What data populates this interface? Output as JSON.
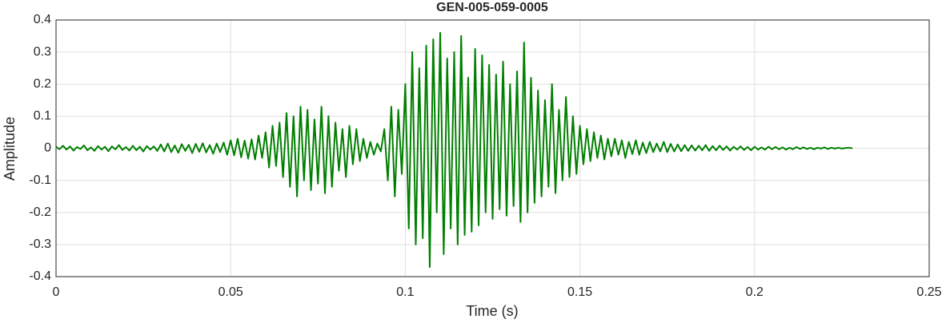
{
  "chart_data": {
    "type": "line",
    "title": "GEN-005-059-0005",
    "xlabel": "Time (s)",
    "ylabel": "Amplitude",
    "xlim": [
      0,
      0.25
    ],
    "xticks": [
      0,
      0.05,
      0.1,
      0.15,
      0.2,
      0.25
    ],
    "ylim": [
      -0.4,
      0.4
    ],
    "yticks": [
      -0.4,
      -0.3,
      -0.2,
      -0.1,
      0,
      0.1,
      0.2,
      0.3,
      0.4
    ],
    "grid": true,
    "series": [
      {
        "color": "#007f00",
        "x": [
          0,
          0.001,
          0.002,
          0.003,
          0.004,
          0.005,
          0.006,
          0.007,
          0.008,
          0.009,
          0.01,
          0.011,
          0.012,
          0.013,
          0.014,
          0.015,
          0.016,
          0.017,
          0.018,
          0.019,
          0.02,
          0.021,
          0.022,
          0.023,
          0.024,
          0.025,
          0.026,
          0.027,
          0.028,
          0.029,
          0.03,
          0.031,
          0.032,
          0.033,
          0.034,
          0.035,
          0.036,
          0.037,
          0.038,
          0.039,
          0.04,
          0.041,
          0.042,
          0.043,
          0.044,
          0.045,
          0.046,
          0.047,
          0.048,
          0.049,
          0.05,
          0.051,
          0.052,
          0.053,
          0.054,
          0.055,
          0.056,
          0.057,
          0.058,
          0.059,
          0.06,
          0.061,
          0.062,
          0.063,
          0.064,
          0.065,
          0.066,
          0.067,
          0.068,
          0.069,
          0.07,
          0.071,
          0.072,
          0.073,
          0.074,
          0.075,
          0.076,
          0.077,
          0.078,
          0.079,
          0.08,
          0.081,
          0.082,
          0.083,
          0.084,
          0.085,
          0.086,
          0.087,
          0.088,
          0.089,
          0.09,
          0.091,
          0.092,
          0.093,
          0.094,
          0.095,
          0.096,
          0.097,
          0.098,
          0.099,
          0.1,
          0.101,
          0.102,
          0.103,
          0.104,
          0.105,
          0.106,
          0.107,
          0.108,
          0.109,
          0.11,
          0.111,
          0.112,
          0.113,
          0.114,
          0.115,
          0.116,
          0.117,
          0.118,
          0.119,
          0.12,
          0.121,
          0.122,
          0.123,
          0.124,
          0.125,
          0.126,
          0.127,
          0.128,
          0.129,
          0.13,
          0.131,
          0.132,
          0.133,
          0.134,
          0.135,
          0.136,
          0.137,
          0.138,
          0.139,
          0.14,
          0.141,
          0.142,
          0.143,
          0.144,
          0.145,
          0.146,
          0.147,
          0.148,
          0.149,
          0.15,
          0.151,
          0.152,
          0.153,
          0.154,
          0.155,
          0.156,
          0.157,
          0.158,
          0.159,
          0.16,
          0.161,
          0.162,
          0.163,
          0.164,
          0.165,
          0.166,
          0.167,
          0.168,
          0.169,
          0.17,
          0.171,
          0.172,
          0.173,
          0.174,
          0.175,
          0.176,
          0.177,
          0.178,
          0.179,
          0.18,
          0.181,
          0.182,
          0.183,
          0.184,
          0.185,
          0.186,
          0.187,
          0.188,
          0.189,
          0.19,
          0.191,
          0.192,
          0.193,
          0.194,
          0.195,
          0.196,
          0.197,
          0.198,
          0.199,
          0.2,
          0.201,
          0.202,
          0.203,
          0.204,
          0.205,
          0.206,
          0.207,
          0.208,
          0.209,
          0.21,
          0.211,
          0.212,
          0.213,
          0.214,
          0.215,
          0.216,
          0.217,
          0.218,
          0.219,
          0.22,
          0.221,
          0.222,
          0.223,
          0.224,
          0.225,
          0.226,
          0.227,
          0.228
        ],
        "values": [
          0.005,
          -0.003,
          0.008,
          -0.004,
          0.006,
          -0.007,
          0.004,
          -0.002,
          0.009,
          -0.006,
          0.003,
          -0.008,
          0.007,
          -0.004,
          0.005,
          -0.009,
          0.006,
          -0.003,
          0.01,
          -0.005,
          0.004,
          -0.007,
          0.008,
          -0.006,
          0.005,
          -0.01,
          0.007,
          -0.004,
          0.006,
          -0.008,
          0.012,
          -0.01,
          0.015,
          -0.012,
          0.009,
          -0.014,
          0.013,
          -0.008,
          0.011,
          -0.015,
          0.014,
          -0.011,
          0.016,
          -0.013,
          0.01,
          -0.017,
          0.015,
          -0.012,
          0.018,
          -0.02,
          0.025,
          -0.022,
          0.03,
          -0.028,
          0.024,
          -0.032,
          0.028,
          -0.035,
          0.04,
          -0.03,
          0.05,
          -0.06,
          0.07,
          -0.055,
          0.08,
          -0.09,
          0.11,
          -0.12,
          0.1,
          -0.15,
          0.13,
          -0.1,
          0.12,
          -0.13,
          0.09,
          -0.11,
          0.13,
          -0.14,
          0.1,
          -0.12,
          0.08,
          -0.07,
          0.06,
          -0.09,
          0.07,
          -0.05,
          0.06,
          -0.04,
          0.03,
          -0.03,
          0.02,
          -0.02,
          0.015,
          -0.01,
          0.06,
          -0.1,
          0.13,
          -0.15,
          0.12,
          -0.08,
          0.2,
          -0.25,
          0.3,
          -0.3,
          0.25,
          -0.28,
          0.32,
          -0.37,
          0.34,
          -0.2,
          0.36,
          -0.33,
          0.28,
          -0.25,
          0.3,
          -0.3,
          0.35,
          -0.27,
          0.22,
          -0.26,
          0.31,
          -0.24,
          0.29,
          -0.2,
          0.26,
          -0.22,
          0.23,
          -0.19,
          0.27,
          -0.21,
          0.2,
          -0.18,
          0.24,
          -0.23,
          0.33,
          -0.2,
          0.22,
          -0.17,
          0.18,
          -0.15,
          0.15,
          -0.12,
          0.2,
          -0.14,
          0.12,
          -0.1,
          0.16,
          -0.09,
          0.1,
          -0.08,
          0.07,
          -0.05,
          0.06,
          -0.04,
          0.05,
          -0.03,
          0.04,
          -0.035,
          0.03,
          -0.025,
          0.03,
          -0.02,
          0.025,
          -0.03,
          0.02,
          -0.018,
          0.025,
          -0.02,
          0.018,
          -0.015,
          0.02,
          -0.012,
          0.015,
          -0.01,
          0.02,
          -0.012,
          0.014,
          -0.01,
          0.012,
          -0.009,
          0.01,
          -0.008,
          0.009,
          -0.007,
          0.008,
          -0.006,
          0.01,
          -0.008,
          0.007,
          -0.006,
          0.008,
          -0.005,
          0.006,
          -0.007,
          0.005,
          -0.004,
          0.006,
          -0.005,
          0.004,
          -0.006,
          0.005,
          -0.004,
          0.003,
          -0.004,
          0.005,
          -0.003,
          0.004,
          -0.003,
          0.003,
          -0.004,
          0.002,
          -0.003,
          0.004,
          -0.002,
          0.003,
          -0.002,
          0.002,
          -0.003,
          0.002,
          -0.001,
          0.003,
          -0.002,
          0.002,
          -0.001,
          0.002,
          -0.001,
          0.001,
          0.002,
          0
        ]
      }
    ]
  }
}
